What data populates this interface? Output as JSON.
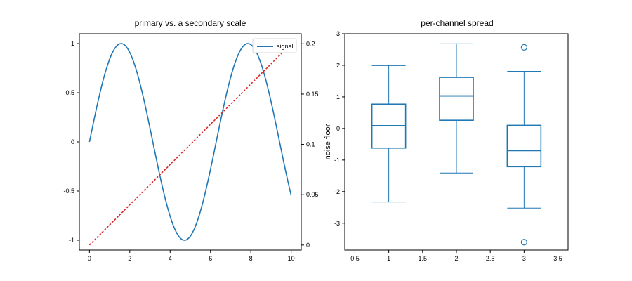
{
  "chart_data": [
    {
      "type": "line",
      "title": "primary vs. a secondary scale",
      "xlabel": "",
      "ylabel": "",
      "xlim": [
        -0.5,
        10.5
      ],
      "ylim": [
        -1.1,
        1.1
      ],
      "y2lim": [
        -0.005,
        0.21
      ],
      "grid": false,
      "legend": "top-right",
      "x_ticks": [
        "0",
        "2",
        "4",
        "6",
        "8",
        "10"
      ],
      "y_ticks": [
        "-1",
        "-0.5",
        "0",
        "0.5",
        "1"
      ],
      "y2_ticks": [
        "0",
        "0.05",
        "0.1",
        "0.15",
        "0.2"
      ],
      "series": [
        {
          "name": "signal",
          "axis": "left",
          "color": "#1f77b4",
          "style": "solid",
          "function": "sin(x)",
          "x_range": [
            0,
            10
          ],
          "samples": 200
        },
        {
          "axis": "right",
          "color": "#d62728",
          "style": "dashed",
          "x": [
            0,
            10
          ],
          "y": [
            0,
            0.2
          ]
        }
      ]
    },
    {
      "type": "box",
      "title": "per-channel spread",
      "xlabel": "",
      "ylabel": "noise floor",
      "xlim": [
        0.35,
        3.65
      ],
      "ylim": [
        -3.85,
        3.0
      ],
      "grid": false,
      "color": "#1f77b4",
      "x_ticks": [
        "0.5",
        "1",
        "1.5",
        "2",
        "2.5",
        "3",
        "3.5"
      ],
      "y_ticks": [
        "-3",
        "-2",
        "-1",
        "0",
        "1",
        "2",
        "3"
      ],
      "boxes": [
        {
          "position": 1,
          "whisker_low": -2.33,
          "q1": -0.62,
          "median": 0.09,
          "q3": 0.77,
          "whisker_high": 1.99,
          "outliers": []
        },
        {
          "position": 2,
          "whisker_low": -1.41,
          "q1": 0.26,
          "median": 1.03,
          "q3": 1.62,
          "whisker_high": 2.68,
          "outliers": []
        },
        {
          "position": 3,
          "whisker_low": -2.52,
          "q1": -1.21,
          "median": -0.7,
          "q3": 0.1,
          "whisker_high": 1.81,
          "outliers": [
            2.57,
            -3.6
          ]
        }
      ]
    }
  ]
}
